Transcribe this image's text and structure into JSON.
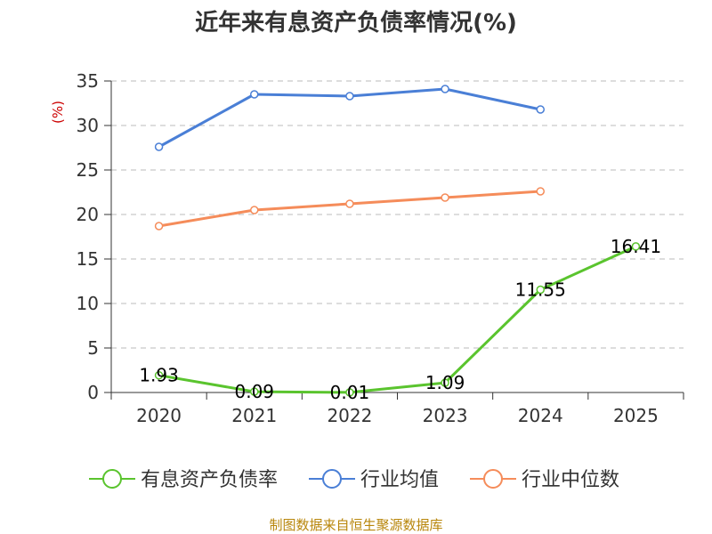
{
  "chart_data": {
    "type": "line",
    "title": "近年来有息资产负债率情况(%)",
    "ylabel": "(%)",
    "categories": [
      "2020",
      "2021",
      "2022",
      "2023",
      "2024",
      "2025"
    ],
    "ylim": [
      0,
      35
    ],
    "yticks": [
      "0",
      "5",
      "10",
      "15",
      "20",
      "25",
      "30",
      "35"
    ],
    "grid": true,
    "legend_position": "bottom",
    "series": [
      {
        "name": "有息资产负债率",
        "color": "#5ac42e",
        "values": [
          1.93,
          0.09,
          0.01,
          1.09,
          11.55,
          16.41
        ],
        "labels": [
          "1.93",
          "0.09",
          "0.01",
          "1.09",
          "11.55",
          "16.41"
        ]
      },
      {
        "name": "行业均值",
        "color": "#4a7fd6",
        "values": [
          27.6,
          33.5,
          33.3,
          34.1,
          31.8,
          null
        ]
      },
      {
        "name": "行业中位数",
        "color": "#f58c5a",
        "values": [
          18.7,
          20.5,
          21.2,
          21.9,
          22.6,
          null
        ]
      }
    ]
  },
  "source": "制图数据来自恒生聚源数据库"
}
